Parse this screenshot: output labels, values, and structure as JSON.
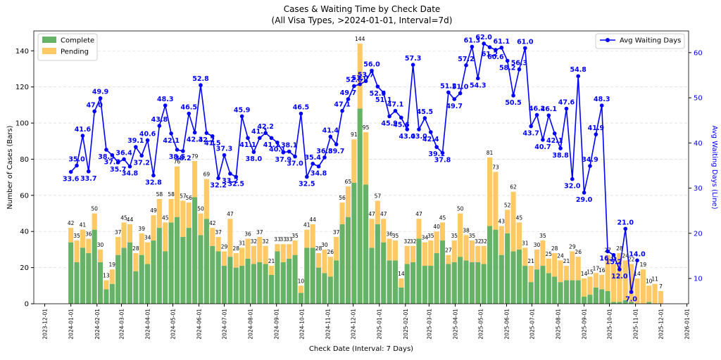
{
  "chart_data": {
    "type": "bar",
    "stacked": true,
    "title": "Cases & Waiting Time by Check Date",
    "subtitle": "(All Visa Types, >2024-01-01, Interval=7d)",
    "xlabel": "Check Date (Interval: 7 Days)",
    "ylabel": "Number of Cases (Bars)",
    "y2label": "Avg Waiting Days (Line)",
    "x": [
      "2024-01-01",
      "2024-01-08",
      "2024-01-15",
      "2024-01-22",
      "2024-01-29",
      "2024-02-05",
      "2024-02-12",
      "2024-02-19",
      "2024-02-26",
      "2024-03-04",
      "2024-03-11",
      "2024-03-18",
      "2024-03-25",
      "2024-04-01",
      "2024-04-08",
      "2024-04-15",
      "2024-04-22",
      "2024-04-29",
      "2024-05-06",
      "2024-05-13",
      "2024-05-20",
      "2024-05-27",
      "2024-06-03",
      "2024-06-10",
      "2024-06-17",
      "2024-06-24",
      "2024-07-01",
      "2024-07-08",
      "2024-07-15",
      "2024-07-22",
      "2024-07-29",
      "2024-08-05",
      "2024-08-12",
      "2024-08-19",
      "2024-08-26",
      "2024-09-02",
      "2024-09-09",
      "2024-09-16",
      "2024-09-23",
      "2024-09-30",
      "2024-10-07",
      "2024-10-14",
      "2024-10-21",
      "2024-10-28",
      "2024-11-04",
      "2024-11-11",
      "2024-11-18",
      "2024-11-25",
      "2024-12-02",
      "2024-12-09",
      "2024-12-16",
      "2024-12-23",
      "2024-12-30",
      "2025-01-06",
      "2025-01-13",
      "2025-01-20",
      "2025-01-27",
      "2025-02-03",
      "2025-02-10",
      "2025-02-17",
      "2025-02-24",
      "2025-03-03",
      "2025-03-10",
      "2025-03-17",
      "2025-03-24",
      "2025-03-31",
      "2025-04-07",
      "2025-04-14",
      "2025-04-21",
      "2025-04-28",
      "2025-05-05",
      "2025-05-12",
      "2025-05-19",
      "2025-05-26",
      "2025-06-02",
      "2025-06-09",
      "2025-06-16",
      "2025-06-23",
      "2025-06-30",
      "2025-07-07",
      "2025-07-14",
      "2025-07-21",
      "2025-07-28",
      "2025-08-04",
      "2025-08-11",
      "2025-08-18",
      "2025-08-25",
      "2025-09-01",
      "2025-09-08",
      "2025-09-15",
      "2025-09-22",
      "2025-09-29",
      "2025-10-06",
      "2025-10-13",
      "2025-10-20",
      "2025-10-27",
      "2025-11-03",
      "2025-11-10",
      "2025-11-17",
      "2025-11-24",
      "2025-12-01"
    ],
    "series": [
      {
        "name": "Complete",
        "color": "#66b266",
        "values": [
          34,
          23,
          31,
          28,
          41,
          23,
          8,
          11,
          27,
          31,
          34,
          18,
          27,
          22,
          35,
          42,
          29,
          45,
          48,
          37,
          42,
          59,
          38,
          47,
          32,
          29,
          21,
          26,
          20,
          21,
          25,
          22,
          23,
          22,
          16,
          29,
          23,
          25,
          27,
          6,
          31,
          31,
          20,
          17,
          15,
          24,
          44,
          48,
          67,
          108,
          66,
          31,
          44,
          34,
          24,
          24,
          9,
          22,
          23,
          36,
          21,
          21,
          28,
          35,
          22,
          23,
          26,
          24,
          23,
          23,
          22,
          43,
          41,
          27,
          39,
          29,
          30,
          21,
          12,
          19,
          21,
          17,
          15,
          12,
          13,
          13,
          13,
          4,
          5,
          9,
          8,
          7,
          1,
          1,
          2,
          1,
          0,
          0,
          1,
          0,
          0
        ]
      },
      {
        "name": "Pending",
        "color": "#ffc966",
        "values": [
          8,
          12,
          10,
          8,
          9,
          7,
          5,
          8,
          10,
          14,
          10,
          10,
          12,
          12,
          14,
          16,
          16,
          13,
          28,
          20,
          14,
          20,
          12,
          22,
          10,
          8,
          8,
          21,
          8,
          10,
          11,
          10,
          14,
          10,
          5,
          4,
          10,
          8,
          8,
          4,
          10,
          13,
          8,
          13,
          11,
          13,
          12,
          17,
          24,
          36,
          29,
          16,
          13,
          13,
          12,
          11,
          5,
          10,
          9,
          11,
          13,
          14,
          12,
          10,
          5,
          12,
          24,
          14,
          12,
          9,
          10,
          38,
          32,
          16,
          13,
          33,
          15,
          10,
          9,
          11,
          14,
          8,
          13,
          12,
          8,
          16,
          13,
          10,
          10,
          8,
          8,
          20,
          21,
          27,
          22,
          21,
          14,
          19,
          9,
          11,
          7
        ]
      },
      {
        "name": "Avg Waiting Days",
        "color": "#0000ff",
        "type": "line",
        "axis": "y2",
        "values": [
          33.6,
          35.0,
          41.6,
          33.7,
          47.0,
          49.9,
          38.5,
          37.3,
          35.7,
          36.4,
          34.8,
          39.1,
          37.2,
          40.6,
          32.8,
          43.8,
          48.3,
          42.1,
          38.5,
          38.2,
          46.5,
          42.3,
          52.8,
          42.2,
          41.5,
          32.2,
          37.3,
          33.2,
          32.5,
          45.9,
          41.1,
          38.0,
          41.1,
          42.2,
          41.1,
          40.1,
          37.9,
          38.1,
          37.0,
          46.5,
          32.5,
          35.4,
          34.8,
          36.8,
          41.4,
          39.7,
          47.1,
          49.7,
          52.6,
          53.0,
          53.7,
          56.0,
          52.5,
          51.1,
          45.9,
          47.1,
          45.6,
          43.0,
          57.3,
          43.0,
          45.5,
          42.4,
          39.1,
          37.8,
          51.2,
          49.7,
          51.0,
          57.2,
          61.3,
          54.3,
          62.0,
          61.2,
          60.6,
          61.1,
          58.2,
          50.5,
          56.3,
          61.0,
          43.7,
          46.2,
          40.7,
          46.1,
          42.1,
          38.8,
          47.6,
          32.0,
          54.8,
          29.0,
          34.9,
          41.9,
          48.3,
          16.0,
          15.2,
          12.0,
          21.0,
          7.0,
          14.0,
          null,
          null,
          null,
          null
        ],
        "value_labels": [
          "33.6",
          "35.0",
          "41.6",
          "33.7",
          "47.0",
          "49.9",
          "38.5",
          "37.3",
          "35.7",
          "36.4",
          "34.8",
          "39.1",
          "37.2",
          "40.6",
          "32.8",
          "43.8",
          "48.3",
          "42.1",
          "38.5",
          "38.2",
          "46.5",
          "42.3",
          "52.8",
          "42.2",
          "41.5",
          "32.2",
          "37.3",
          "33.2",
          "32.5",
          "45.9",
          "41.1",
          "38.0",
          "41.1",
          "42.2",
          "41.1",
          "40.1",
          "37.9",
          "38.1",
          "37.0",
          "46.5",
          "32.5",
          "35.4",
          "34.8",
          "36.8",
          "41.4",
          "39.7",
          "47.1",
          "49.7",
          "52.6",
          "53.0",
          "53.7",
          "56.0",
          "52.5",
          "51.1",
          "45.9",
          "47.1",
          "45.6",
          "43.0",
          "57.3",
          "43.0",
          "45.5",
          "42.4",
          "39.1",
          "37.8",
          "51.2",
          "49.7",
          "51.0",
          "57.2",
          "61.3",
          "54.3",
          "62.0",
          "61.2",
          "60.6",
          "61.1",
          "58.2",
          "50.5",
          "56.3",
          "61.0",
          "43.7",
          "46.2",
          "40.7",
          "46.1",
          "42.1",
          "38.8",
          "47.6",
          "32.0",
          "54.8",
          "29.0",
          "34.9",
          "41.9",
          "48.3",
          "16.0",
          "15.2",
          "12.0",
          "21.0",
          "7.0",
          "14.0",
          null,
          null,
          null,
          null
        ]
      }
    ],
    "totals": [
      42,
      35,
      41,
      36,
      50,
      30,
      13,
      19,
      37,
      45,
      44,
      28,
      39,
      34,
      49,
      58,
      45,
      58,
      76,
      57,
      56,
      79,
      50,
      69,
      42,
      37,
      29,
      47,
      28,
      31,
      36,
      32,
      37,
      32,
      21,
      33,
      33,
      33,
      35,
      10,
      41,
      44,
      28,
      30,
      26,
      37,
      56,
      65,
      91,
      144,
      95,
      47,
      57,
      47,
      36,
      35,
      14,
      32,
      32,
      47,
      34,
      35,
      40,
      45,
      27,
      35,
      50,
      38,
      35,
      32,
      32,
      81,
      73,
      43,
      52,
      62,
      45,
      31,
      21,
      30,
      35,
      25,
      28,
      24,
      21,
      29,
      26,
      14,
      15,
      17,
      16,
      27,
      22,
      28,
      24,
      22,
      14,
      19,
      10,
      11,
      7
    ],
    "xlim": [
      "2023-11-18",
      "2026-01-03"
    ],
    "xticks": [
      "2023-12-01",
      "2024-01-01",
      "2024-02-01",
      "2024-03-01",
      "2024-04-01",
      "2024-05-01",
      "2024-06-01",
      "2024-07-01",
      "2024-08-01",
      "2024-09-01",
      "2024-10-01",
      "2024-11-01",
      "2024-12-01",
      "2025-01-01",
      "2025-02-01",
      "2025-03-01",
      "2025-04-01",
      "2025-05-01",
      "2025-06-01",
      "2025-07-01",
      "2025-08-01",
      "2025-09-01",
      "2025-10-01",
      "2025-11-01",
      "2025-12-01",
      "2026-01-01"
    ],
    "ylim": [
      0,
      151
    ],
    "yticks": [
      0,
      20,
      40,
      60,
      80,
      100,
      120,
      140
    ],
    "y2lim": [
      4.4,
      64.8
    ],
    "y2ticks": [
      10,
      20,
      30,
      40,
      50,
      60
    ],
    "grid": true,
    "legend": "upper left",
    "legend2": "upper right"
  }
}
